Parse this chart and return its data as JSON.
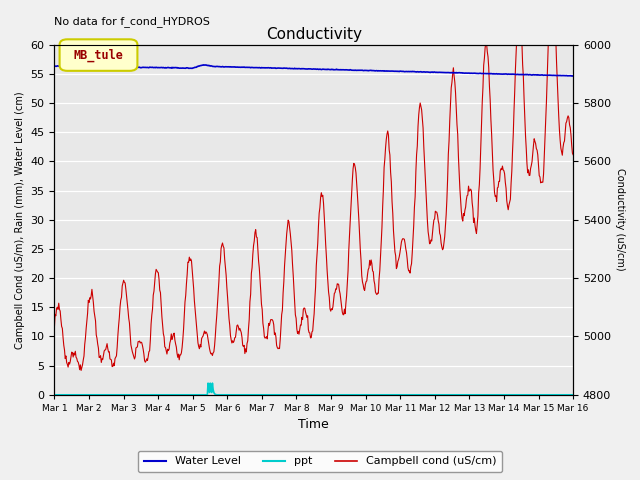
{
  "title": "Conductivity",
  "top_left_text": "No data for f_cond_HYDROS",
  "xlabel": "Time",
  "ylabel_left": "Campbell Cond (uS/m), Rain (mm), Water Level (cm)",
  "ylabel_right": "Conductivity (uS/cm)",
  "ylim_left": [
    0,
    60
  ],
  "ylim_right": [
    4800,
    6000
  ],
  "xtick_labels": [
    "Mar 1",
    "Mar 2",
    "Mar 3",
    "Mar 4",
    "Mar 5",
    "Mar 6",
    "Mar 7",
    "Mar 8",
    "Mar 9",
    "Mar 10",
    "Mar 11",
    "Mar 12",
    "Mar 13",
    "Mar 14",
    "Mar 15",
    "Mar 16"
  ],
  "background_color": "#e8e8e8",
  "legend_box_label": "MB_tule",
  "legend_box_color": "#ffffcc",
  "legend_box_edge": "#cccc00",
  "legend_box_text_color": "#990000",
  "water_level_color": "#0000cc",
  "ppt_color": "#00cccc",
  "campbell_color": "#cc0000",
  "fig_bg_color": "#f0f0f0"
}
